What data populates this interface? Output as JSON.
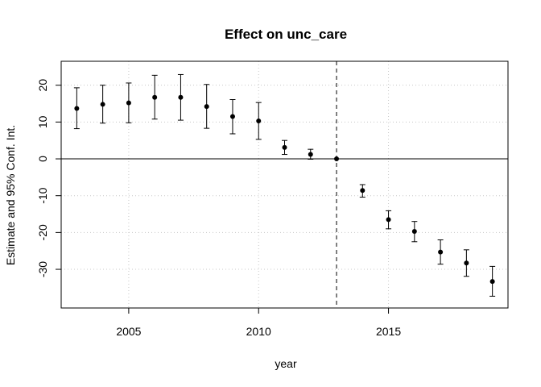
{
  "chart_data": {
    "type": "scatter",
    "title": "Effect on unc_care",
    "xlabel": "year",
    "ylabel": "Estimate and 95% Conf. Int.",
    "xlim": [
      2002.4,
      2019.6
    ],
    "ylim": [
      -40.5,
      26.5
    ],
    "xticks": [
      2005,
      2010,
      2015
    ],
    "yticks": [
      20,
      10,
      0,
      -10,
      -20,
      -30
    ],
    "grid": true,
    "reference_hline": 0,
    "reference_vline": 2013,
    "points": [
      {
        "x": 2003,
        "y": 13.7,
        "lo": 8.2,
        "hi": 19.3
      },
      {
        "x": 2004,
        "y": 14.8,
        "lo": 9.7,
        "hi": 20.0
      },
      {
        "x": 2005,
        "y": 15.2,
        "lo": 9.8,
        "hi": 20.6
      },
      {
        "x": 2006,
        "y": 16.7,
        "lo": 10.8,
        "hi": 22.7
      },
      {
        "x": 2007,
        "y": 16.7,
        "lo": 10.5,
        "hi": 22.9
      },
      {
        "x": 2008,
        "y": 14.2,
        "lo": 8.3,
        "hi": 20.2
      },
      {
        "x": 2009,
        "y": 11.5,
        "lo": 6.8,
        "hi": 16.1
      },
      {
        "x": 2010,
        "y": 10.3,
        "lo": 5.3,
        "hi": 15.3
      },
      {
        "x": 2011,
        "y": 3.1,
        "lo": 1.2,
        "hi": 5.0
      },
      {
        "x": 2012,
        "y": 1.2,
        "lo": -0.1,
        "hi": 2.6
      },
      {
        "x": 2013,
        "y": 0,
        "lo": 0,
        "hi": 0
      },
      {
        "x": 2014,
        "y": -8.6,
        "lo": -10.4,
        "hi": -7.0
      },
      {
        "x": 2015,
        "y": -16.5,
        "lo": -19.0,
        "hi": -14.1
      },
      {
        "x": 2016,
        "y": -19.7,
        "lo": -22.5,
        "hi": -17.0
      },
      {
        "x": 2017,
        "y": -25.3,
        "lo": -28.6,
        "hi": -22.0
      },
      {
        "x": 2018,
        "y": -28.3,
        "lo": -31.9,
        "hi": -24.7
      },
      {
        "x": 2019,
        "y": -33.3,
        "lo": -37.3,
        "hi": -29.2
      }
    ]
  }
}
